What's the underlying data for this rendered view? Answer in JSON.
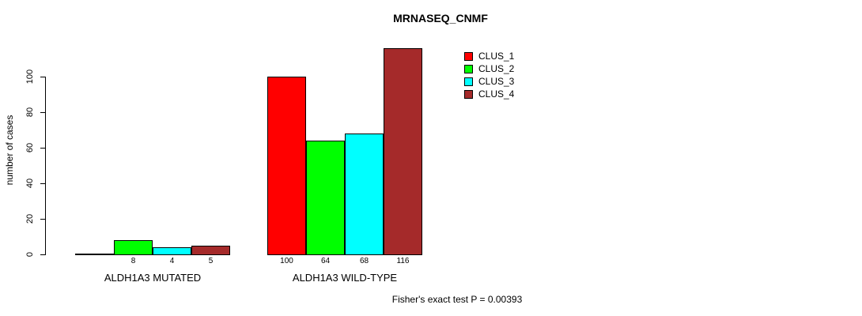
{
  "chart_data": {
    "type": "bar",
    "title": "MRNASEQ_CNMF",
    "ylabel": "number of cases",
    "categories": [
      "ALDH1A3 MUTATED",
      "ALDH1A3 WILD-TYPE"
    ],
    "series": [
      {
        "name": "CLUS_1",
        "color": "#FF0000",
        "values": [
          0,
          100
        ]
      },
      {
        "name": "CLUS_2",
        "color": "#00FF00",
        "values": [
          8,
          64
        ]
      },
      {
        "name": "CLUS_3",
        "color": "#00FFFF",
        "values": [
          4,
          68
        ]
      },
      {
        "name": "CLUS_4",
        "color": "#A52A2A",
        "values": [
          5,
          116
        ]
      }
    ],
    "bar_value_labels": [
      [
        "",
        "8",
        "4",
        "5"
      ],
      [
        "100",
        "64",
        "68",
        "116"
      ]
    ],
    "yticks": [
      0,
      20,
      40,
      60,
      80,
      100
    ],
    "ylim": [
      0,
      120
    ],
    "grid": false,
    "legend_position": "top-right",
    "annotation": "Fisher's exact test P = 0.00393"
  }
}
